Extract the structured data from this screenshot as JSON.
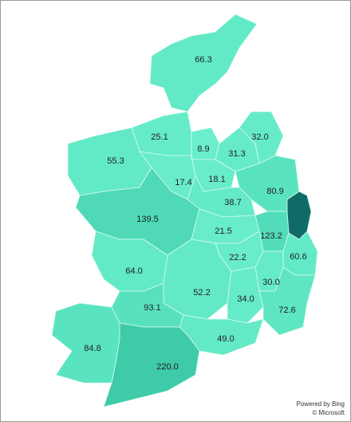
{
  "map": {
    "regions": [
      {
        "value": 66.3,
        "color": "#62e9c5"
      },
      {
        "value": 25.1,
        "color": "#66ebc8"
      },
      {
        "value": 8.9,
        "color": "#6aeecb"
      },
      {
        "value": 31.3,
        "color": "#66ebc8"
      },
      {
        "value": 32,
        "label": "32.0",
        "color": "#66ebc8"
      },
      {
        "value": 55.3,
        "color": "#62e9c5"
      },
      {
        "value": 17.4,
        "color": "#68ecc9"
      },
      {
        "value": 18.1,
        "color": "#68ecc9"
      },
      {
        "value": 80.9,
        "color": "#5ae3bf"
      },
      {
        "value": 38.7,
        "color": "#64eac6"
      },
      {
        "value": 139.5,
        "color": "#4fd9b6"
      },
      {
        "value": 21.5,
        "color": "#68ecc9"
      },
      {
        "value": 123.2,
        "color": "#52dcb9"
      },
      {
        "value": 60.6,
        "color": "#62e9c5"
      },
      {
        "value": 22.2,
        "color": "#68ecc9"
      },
      {
        "value": 64,
        "label": "64.0",
        "color": "#62e9c5"
      },
      {
        "value": 30,
        "label": "30.0",
        "color": "#66ebc8"
      },
      {
        "value": 52.2,
        "color": "#63e9c5"
      },
      {
        "value": 34,
        "label": "34.0",
        "color": "#66ebc8"
      },
      {
        "value": 72.6,
        "color": "#5ee6c2"
      },
      {
        "value": 93.1,
        "color": "#58e1bd"
      },
      {
        "value": 49,
        "label": "49.0",
        "color": "#63e9c5"
      },
      {
        "value": 84.8,
        "color": "#5ae3bf"
      },
      {
        "value": 220,
        "label": "220.0",
        "color": "#3fcaa8"
      },
      {
        "color": "#0f6b66"
      }
    ],
    "attribution": [
      "Powered by Bing",
      "© Microsoft"
    ]
  }
}
